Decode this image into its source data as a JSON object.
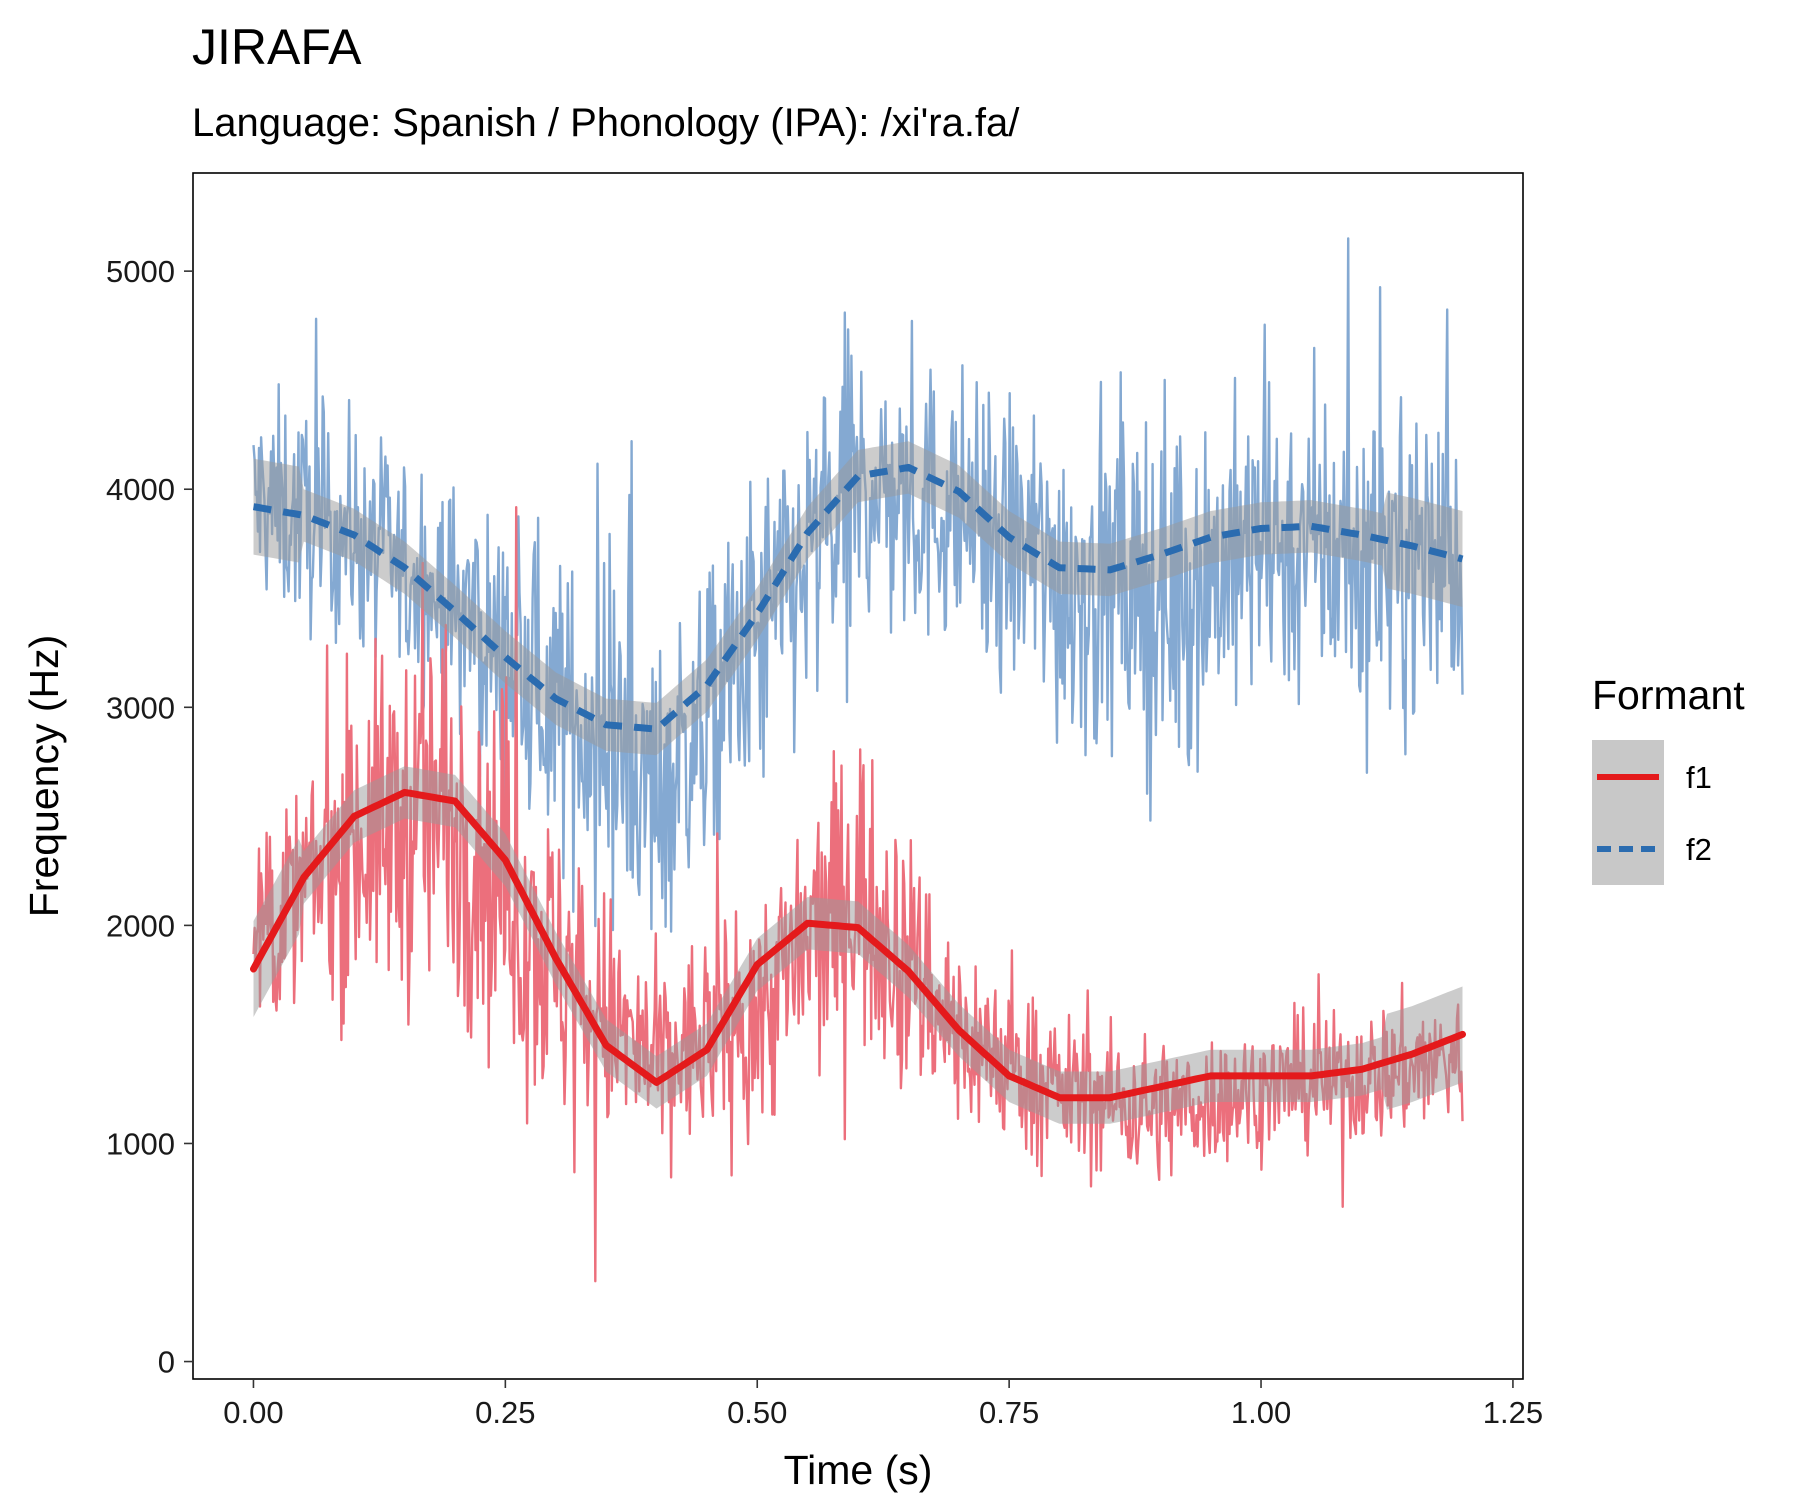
{
  "chart_data": {
    "type": "line",
    "title": "JIRAFA",
    "subtitle": "Language: Spanish / Phonology (IPA): /xi'ra.fa/",
    "xlabel": "Time (s)",
    "ylabel": "Frequency (Hz)",
    "xlim": [
      -0.06,
      1.26
    ],
    "ylim": [
      -80,
      5450
    ],
    "x_ticks": [
      0.0,
      0.25,
      0.5,
      0.75,
      1.0,
      1.25
    ],
    "x_tick_labels": [
      "0.00",
      "0.25",
      "0.50",
      "0.75",
      "1.00",
      "1.25"
    ],
    "y_ticks": [
      0,
      1000,
      2000,
      3000,
      4000,
      5000
    ],
    "y_tick_labels": [
      "0",
      "1000",
      "2000",
      "3000",
      "4000",
      "5000"
    ],
    "grid": false,
    "legend": {
      "title": "Formant",
      "position": "right",
      "entries": [
        "f1",
        "f2"
      ]
    },
    "series": [
      {
        "name": "f1",
        "color": "#e41a1c",
        "raw_color": "#ec6f7c",
        "line_style": "solid",
        "smooth_x": [
          0.0,
          0.05,
          0.1,
          0.15,
          0.2,
          0.25,
          0.3,
          0.35,
          0.4,
          0.45,
          0.5,
          0.55,
          0.6,
          0.65,
          0.7,
          0.75,
          0.8,
          0.85,
          0.9,
          0.95,
          1.0,
          1.05,
          1.1,
          1.15,
          1.2
        ],
        "smooth_y": [
          1800,
          2220,
          2500,
          2610,
          2570,
          2300,
          1850,
          1450,
          1280,
          1430,
          1820,
          2010,
          1990,
          1790,
          1520,
          1310,
          1210,
          1210,
          1260,
          1310,
          1310,
          1310,
          1340,
          1410,
          1500
        ],
        "raw_envelope": [
          {
            "x": 0.0,
            "center": 1900,
            "spread": 350
          },
          {
            "x": 0.1,
            "center": 2400,
            "spread": 650
          },
          {
            "x": 0.2,
            "center": 2550,
            "spread": 850
          },
          {
            "x": 0.3,
            "center": 1800,
            "spread": 650
          },
          {
            "x": 0.4,
            "center": 1350,
            "spread": 400
          },
          {
            "x": 0.5,
            "center": 1600,
            "spread": 500
          },
          {
            "x": 0.6,
            "center": 2200,
            "spread": 650
          },
          {
            "x": 0.7,
            "center": 1500,
            "spread": 400
          },
          {
            "x": 0.8,
            "center": 1250,
            "spread": 300
          },
          {
            "x": 0.9,
            "center": 1150,
            "spread": 300
          },
          {
            "x": 1.0,
            "center": 1250,
            "spread": 250
          },
          {
            "x": 1.1,
            "center": 1300,
            "spread": 280
          },
          {
            "x": 1.2,
            "center": 1400,
            "spread": 300
          }
        ]
      },
      {
        "name": "f2",
        "color": "#2b6cb0",
        "raw_color": "#84a9d2",
        "line_style": "dashed",
        "smooth_x": [
          0.0,
          0.05,
          0.1,
          0.15,
          0.2,
          0.25,
          0.3,
          0.35,
          0.4,
          0.45,
          0.5,
          0.55,
          0.6,
          0.65,
          0.7,
          0.75,
          0.8,
          0.85,
          0.9,
          0.95,
          1.0,
          1.05,
          1.1,
          1.15,
          1.2
        ],
        "smooth_y": [
          3920,
          3880,
          3790,
          3640,
          3440,
          3230,
          3040,
          2920,
          2900,
          3100,
          3430,
          3800,
          4060,
          4100,
          3990,
          3780,
          3640,
          3630,
          3700,
          3780,
          3820,
          3830,
          3790,
          3740,
          3680
        ],
        "raw_envelope": [
          {
            "x": 0.0,
            "center": 3950,
            "spread": 450
          },
          {
            "x": 0.1,
            "center": 3800,
            "spread": 450
          },
          {
            "x": 0.2,
            "center": 3450,
            "spread": 500
          },
          {
            "x": 0.3,
            "center": 3000,
            "spread": 600
          },
          {
            "x": 0.4,
            "center": 2600,
            "spread": 600
          },
          {
            "x": 0.5,
            "center": 3300,
            "spread": 700
          },
          {
            "x": 0.6,
            "center": 4000,
            "spread": 650
          },
          {
            "x": 0.7,
            "center": 3900,
            "spread": 550
          },
          {
            "x": 0.8,
            "center": 3600,
            "spread": 700
          },
          {
            "x": 0.9,
            "center": 3500,
            "spread": 800
          },
          {
            "x": 1.0,
            "center": 3750,
            "spread": 600
          },
          {
            "x": 1.1,
            "center": 3700,
            "spread": 700
          },
          {
            "x": 1.2,
            "center": 3700,
            "spread": 600
          }
        ]
      }
    ]
  }
}
